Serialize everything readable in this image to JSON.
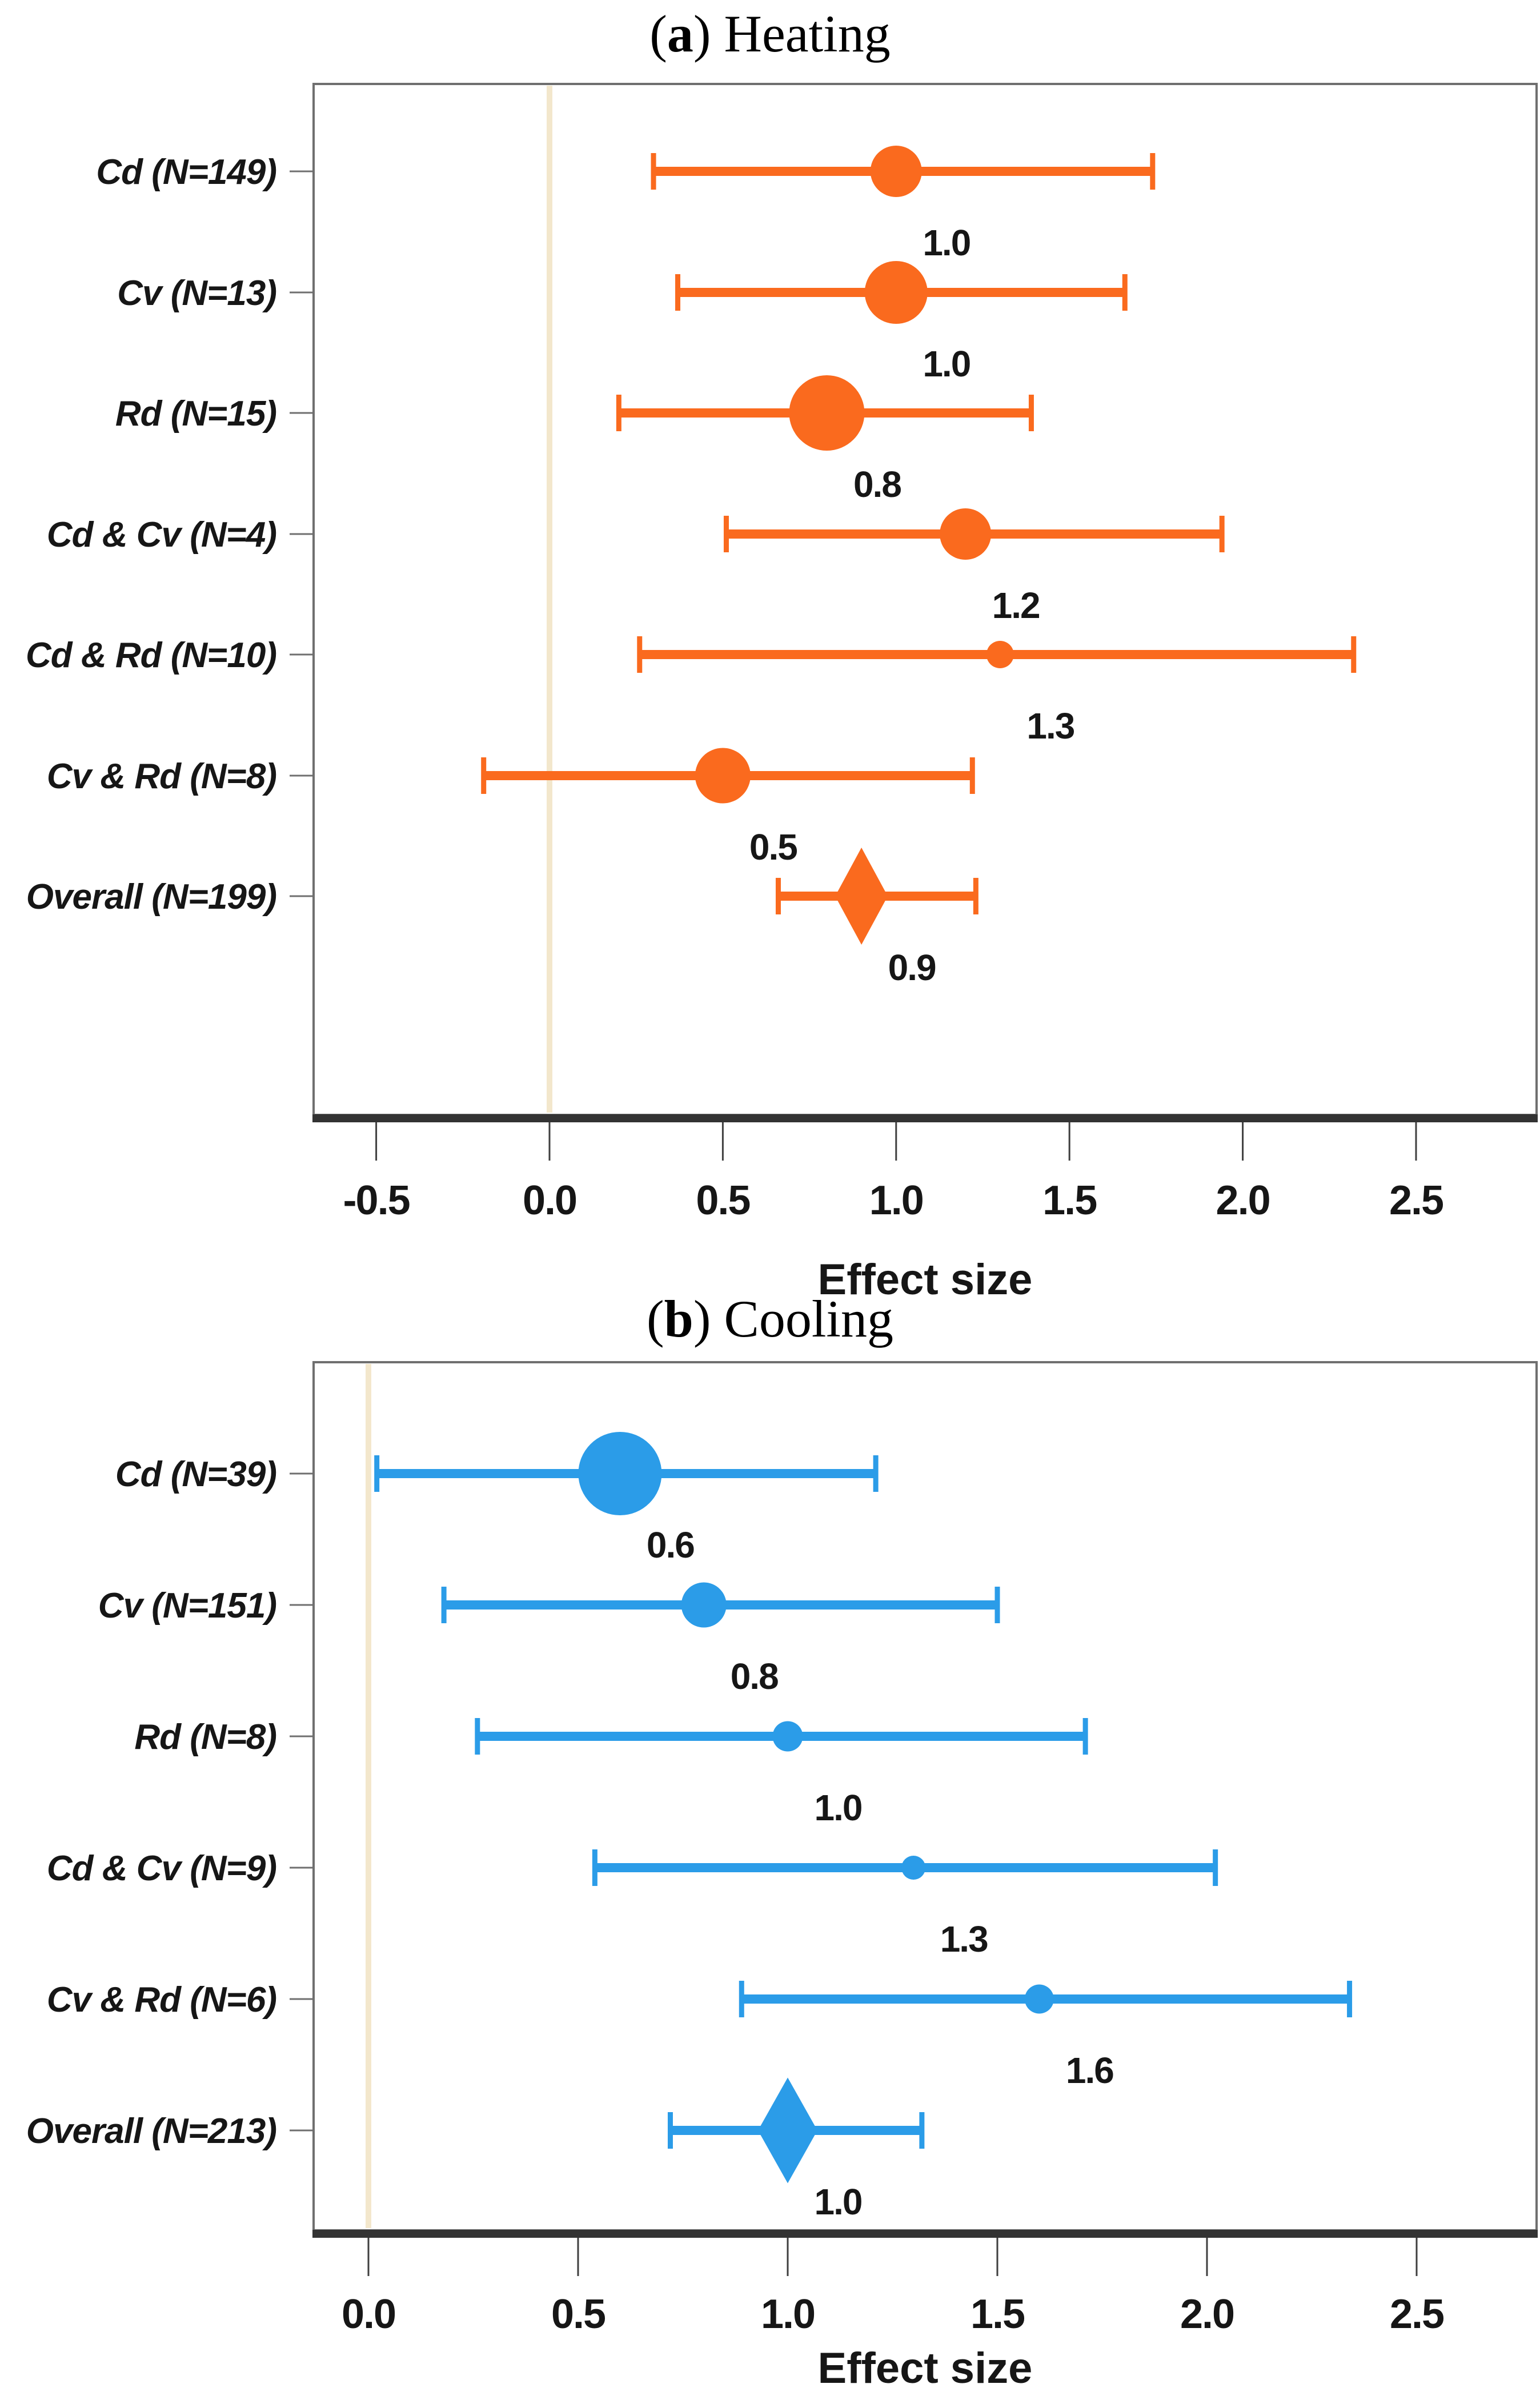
{
  "figure": {
    "background": "#ffffff",
    "text_color": "#161616",
    "box_border_color": "#6f6f6f",
    "axis_spine_color": "#333333",
    "zero_line_color": "#f3e7cc"
  },
  "chart_data": {
    "type": "scatter",
    "subtype": "forest-plot-with-ci",
    "panels": [
      {
        "name": "heating",
        "title": {
          "prefix": "(",
          "letter": "a",
          "suffix": ") Heating"
        },
        "color": "#FA6A1E",
        "zero_line": {
          "x": 0.0,
          "color": "#f3e7cc"
        },
        "x_axis": {
          "label": "Effect size",
          "tick_labels": [
            "-0.5",
            "0.0",
            "0.5",
            "1.0",
            "1.5",
            "2.0",
            "2.5"
          ],
          "tick_values": [
            -0.5,
            0.0,
            0.5,
            1.0,
            1.5,
            2.0,
            2.5
          ],
          "xlim": [
            -0.68,
            2.85
          ]
        },
        "rows": [
          {
            "label": "Cd (N=149)",
            "estimate": 1.0,
            "estimate_label": "1.0",
            "ci_low": 0.3,
            "ci_high": 1.74,
            "marker": "circle",
            "marker_size": 90
          },
          {
            "label": "Cv (N=13)",
            "estimate": 1.0,
            "estimate_label": "1.0",
            "ci_low": 0.37,
            "ci_high": 1.66,
            "marker": "circle",
            "marker_size": 110
          },
          {
            "label": "Rd (N=15)",
            "estimate": 0.8,
            "estimate_label": "0.8",
            "ci_low": 0.2,
            "ci_high": 1.39,
            "marker": "circle",
            "marker_size": 132
          },
          {
            "label": "Cd & Cv (N=4)",
            "estimate": 1.2,
            "estimate_label": "1.2",
            "ci_low": 0.51,
            "ci_high": 1.94,
            "marker": "circle",
            "marker_size": 90
          },
          {
            "label": "Cd & Rd (N=10)",
            "estimate": 1.3,
            "estimate_label": "1.3",
            "ci_low": 0.26,
            "ci_high": 2.32,
            "marker": "circle",
            "marker_size": 48
          },
          {
            "label": "Cv & Rd (N=8)",
            "estimate": 0.5,
            "estimate_label": "0.5",
            "ci_low": -0.19,
            "ci_high": 1.22,
            "marker": "circle",
            "marker_size": 97
          },
          {
            "label": "Overall (N=199)",
            "estimate": 0.9,
            "estimate_label": "0.9",
            "ci_low": 0.66,
            "ci_high": 1.23,
            "marker": "diamond",
            "marker_width": 92,
            "marker_height": 170
          }
        ]
      },
      {
        "name": "cooling",
        "title": {
          "prefix": "(",
          "letter": "b",
          "suffix": ") Cooling"
        },
        "color": "#2B9CE8",
        "zero_line": {
          "x": 0.0,
          "color": "#f3e7cc"
        },
        "x_axis": {
          "label": "Effect size",
          "tick_labels": [
            "0.0",
            "0.5",
            "1.0",
            "1.5",
            "2.0",
            "2.5"
          ],
          "tick_values": [
            0.0,
            0.5,
            1.0,
            1.5,
            2.0,
            2.5
          ],
          "xlim": [
            -0.13,
            2.79
          ]
        },
        "rows": [
          {
            "label": "Cd (N=39)",
            "estimate": 0.6,
            "estimate_label": "0.6",
            "ci_low": 0.02,
            "ci_high": 1.21,
            "marker": "circle",
            "marker_size": 146
          },
          {
            "label": "Cv (N=151)",
            "estimate": 0.8,
            "estimate_label": "0.8",
            "ci_low": 0.18,
            "ci_high": 1.5,
            "marker": "circle",
            "marker_size": 79
          },
          {
            "label": "Rd (N=8)",
            "estimate": 1.0,
            "estimate_label": "1.0",
            "ci_low": 0.26,
            "ci_high": 1.71,
            "marker": "circle",
            "marker_size": 53
          },
          {
            "label": "Cd & Cv (N=9)",
            "estimate": 1.3,
            "estimate_label": "1.3",
            "ci_low": 0.54,
            "ci_high": 2.02,
            "marker": "circle",
            "marker_size": 42
          },
          {
            "label": "Cv & Rd (N=6)",
            "estimate": 1.6,
            "estimate_label": "1.6",
            "ci_low": 0.89,
            "ci_high": 2.34,
            "marker": "circle",
            "marker_size": 51
          },
          {
            "label": "Overall (N=213)",
            "estimate": 1.0,
            "estimate_label": "1.0",
            "ci_low": 0.72,
            "ci_high": 1.32,
            "marker": "diamond",
            "marker_width": 104,
            "marker_height": 185
          }
        ]
      }
    ]
  }
}
